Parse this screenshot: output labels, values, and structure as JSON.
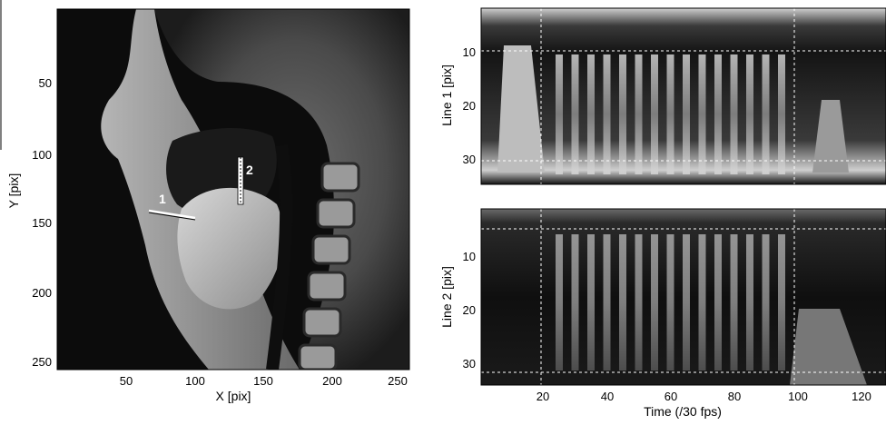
{
  "mri_panel": {
    "xlabel": "X [pix]",
    "ylabel": "Y [pix]",
    "x_ticks": [
      "50",
      "100",
      "150",
      "200",
      "250"
    ],
    "y_ticks": [
      "50",
      "100",
      "150",
      "200",
      "250"
    ],
    "line_markers": [
      "1",
      "2"
    ]
  },
  "top_panel": {
    "ylabel": "Line 1 [pix]",
    "y_ticks": [
      "10",
      "20",
      "30"
    ]
  },
  "bottom_panel": {
    "ylabel": "Line 2 [pix]",
    "xlabel": "Time (/30 fps)",
    "y_ticks": [
      "10",
      "20",
      "30"
    ],
    "x_ticks": [
      "20",
      "40",
      "60",
      "80",
      "100",
      "120"
    ]
  }
}
